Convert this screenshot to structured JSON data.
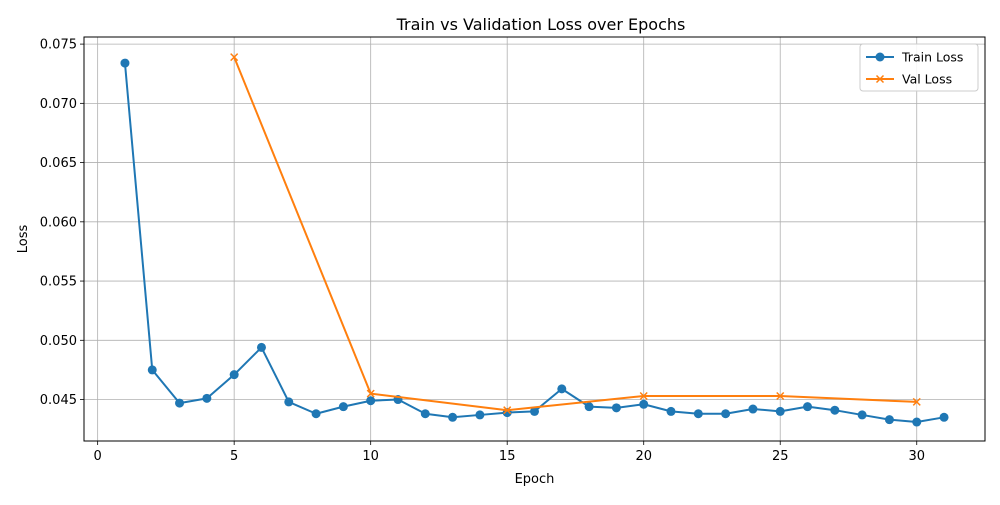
{
  "chart_data": {
    "type": "line",
    "title": "Train vs Validation Loss over Epochs",
    "xlabel": "Epoch",
    "ylabel": "Loss",
    "xlim": [
      -0.5,
      32.5
    ],
    "ylim": [
      0.0415,
      0.0756
    ],
    "xticks": [
      0,
      5,
      10,
      15,
      20,
      25,
      30
    ],
    "yticks": [
      0.045,
      0.05,
      0.055,
      0.06,
      0.065,
      0.07,
      0.075
    ],
    "xtick_labels": [
      "0",
      "5",
      "10",
      "15",
      "20",
      "25",
      "30"
    ],
    "ytick_labels": [
      "0.045",
      "0.050",
      "0.055",
      "0.060",
      "0.065",
      "0.070",
      "0.075"
    ],
    "grid": true,
    "legend_position": "top-right",
    "series": [
      {
        "name": "Train Loss",
        "color": "#1f77b4",
        "marker": "circle",
        "x": [
          1,
          2,
          3,
          4,
          5,
          6,
          7,
          8,
          9,
          10,
          11,
          12,
          13,
          14,
          15,
          16,
          17,
          18,
          19,
          20,
          21,
          22,
          23,
          24,
          25,
          26,
          27,
          28,
          29,
          30,
          31
        ],
        "y": [
          0.0734,
          0.0475,
          0.0447,
          0.0451,
          0.0471,
          0.0494,
          0.0448,
          0.0438,
          0.0444,
          0.0449,
          0.045,
          0.0438,
          0.0435,
          0.0437,
          0.0439,
          0.044,
          0.0459,
          0.0444,
          0.0443,
          0.0446,
          0.044,
          0.0438,
          0.0438,
          0.0442,
          0.044,
          0.0444,
          0.0441,
          0.0437,
          0.0433,
          0.0431,
          0.0435
        ]
      },
      {
        "name": "Val Loss",
        "color": "#ff7f0e",
        "marker": "x",
        "x": [
          5,
          10,
          15,
          20,
          25,
          30
        ],
        "y": [
          0.0739,
          0.0455,
          0.0441,
          0.0453,
          0.0453,
          0.0448
        ]
      }
    ]
  }
}
